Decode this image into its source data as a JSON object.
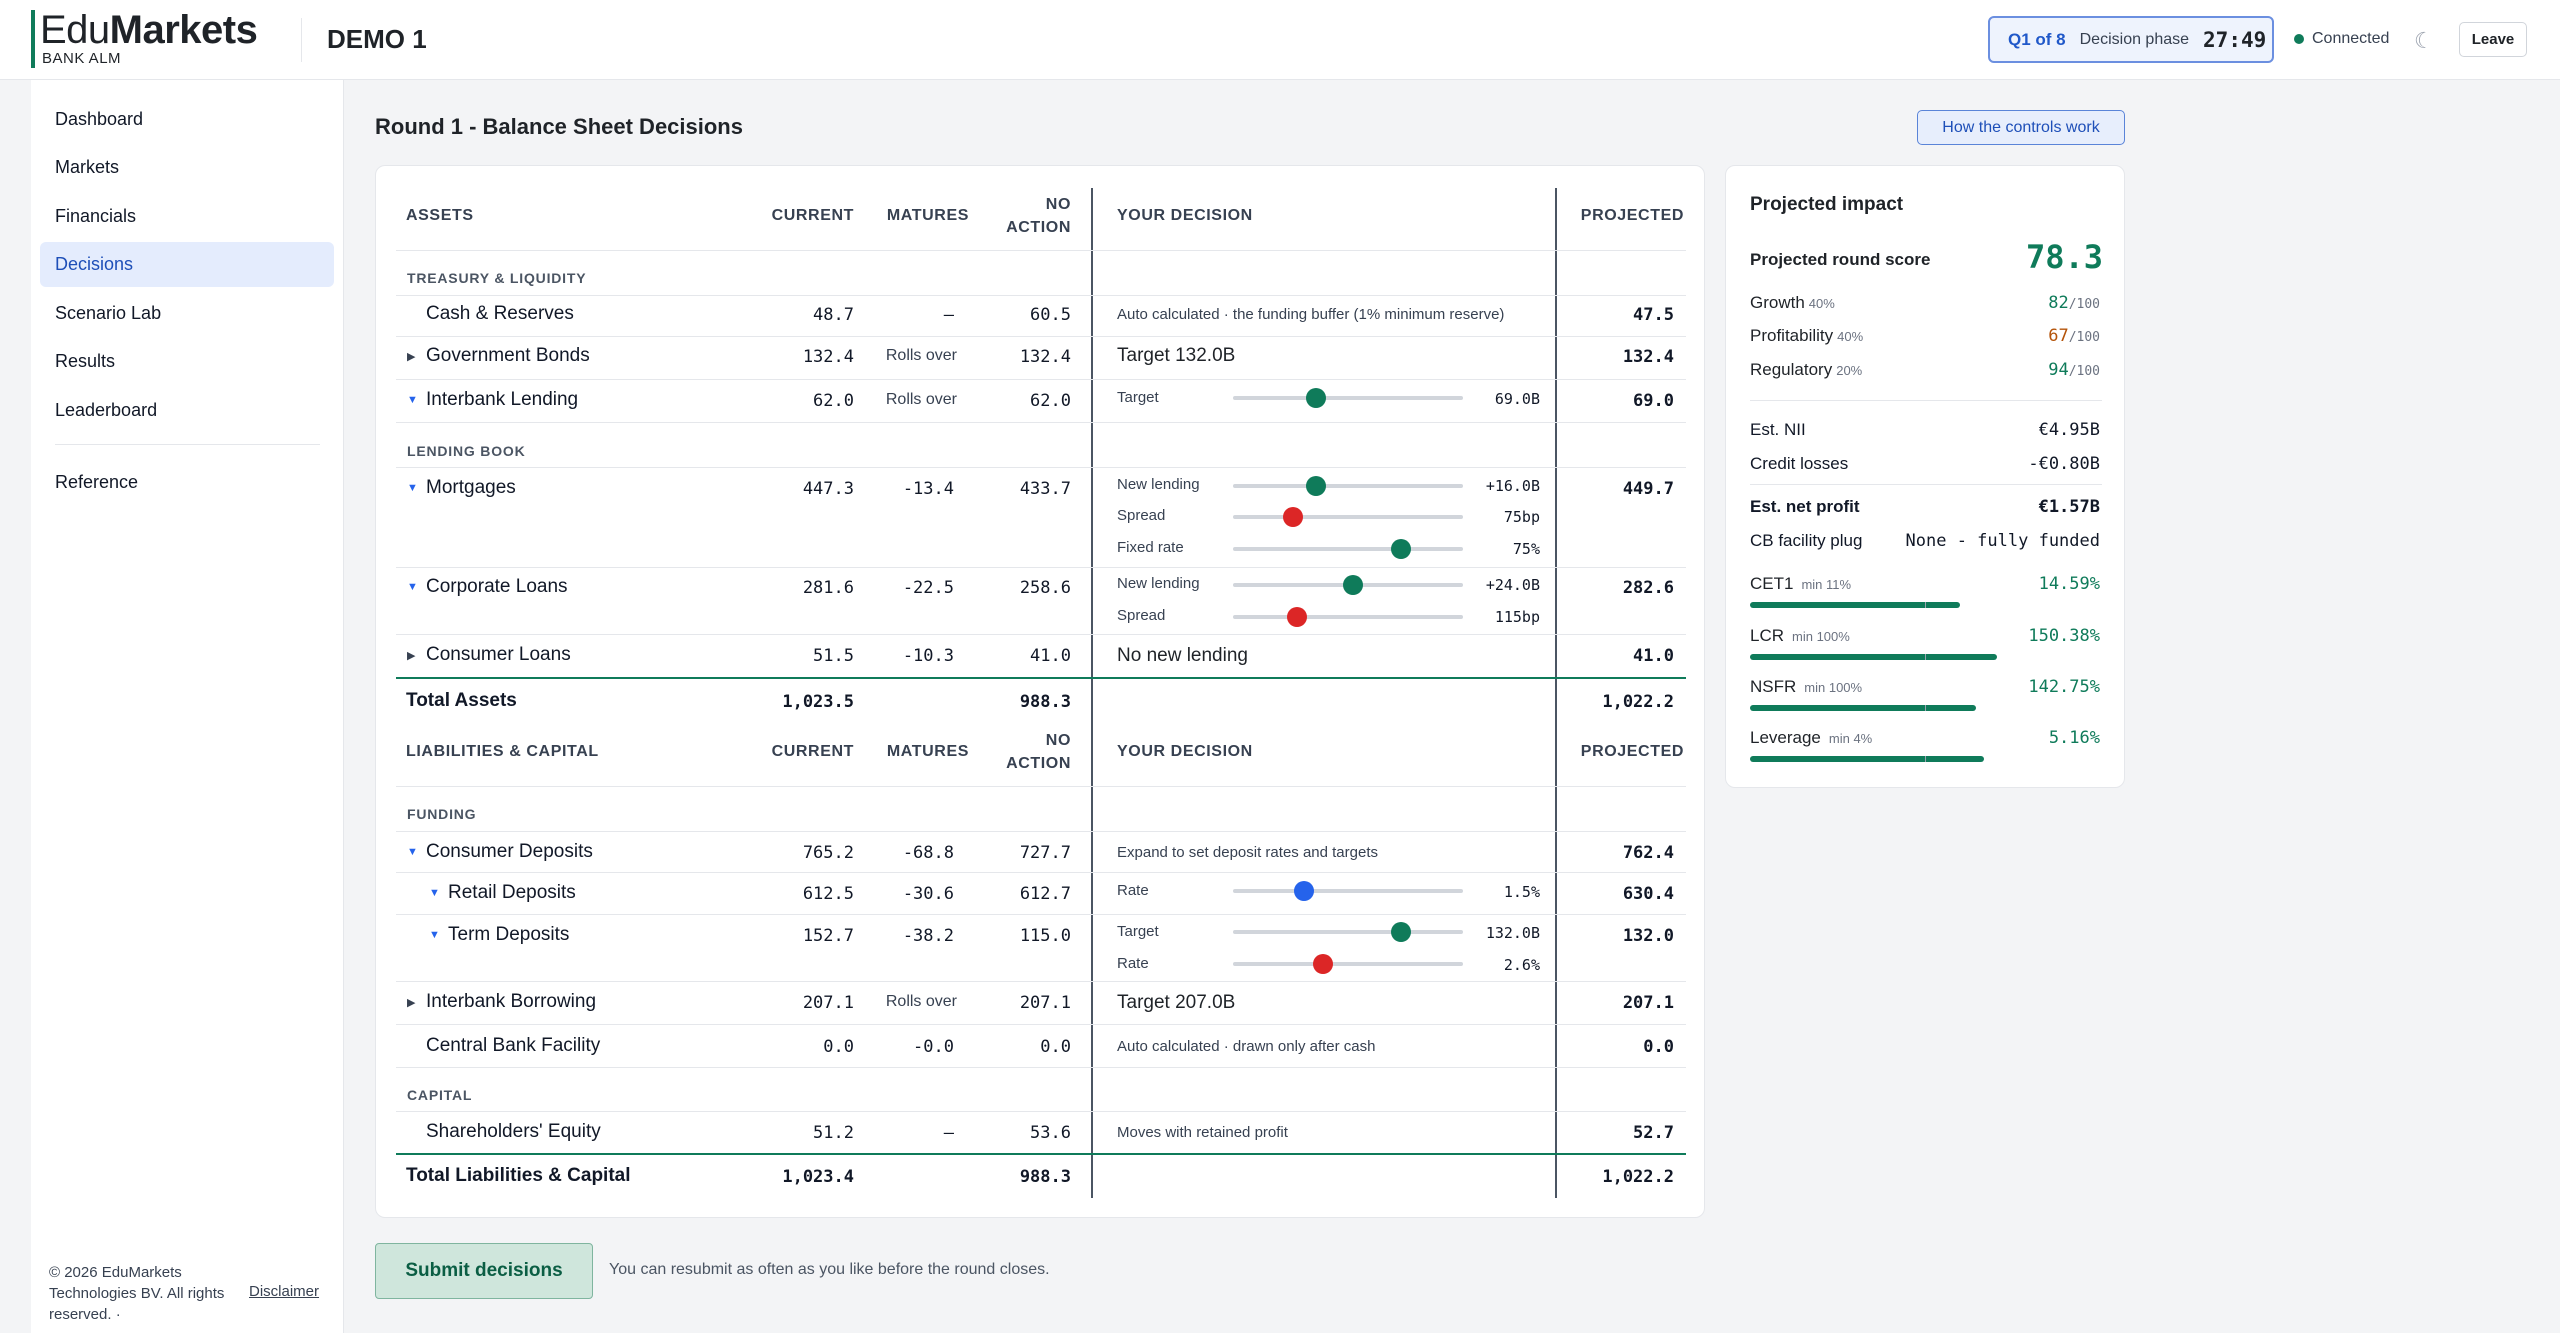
{
  "header": {
    "logo_light": "Edu",
    "logo_bold": "Markets",
    "logo_sub": "BANK ALM",
    "app_title": "DEMO 1",
    "phase_q": "Q1 of 8",
    "phase_label": "Decision phase",
    "timer": "27:49",
    "connection": "Connected",
    "leave_label": "Leave"
  },
  "sidebar": {
    "items": [
      "Dashboard",
      "Markets",
      "Financials",
      "Decisions",
      "Scenario Lab",
      "Results",
      "Leaderboard"
    ],
    "active": "Decisions",
    "reference": "Reference",
    "footer_copy": "© 2026 EduMarkets Technologies BV. All rights reserved. ·",
    "disclaimer": "Disclaimer"
  },
  "main": {
    "title": "Round 1 - Balance Sheet Decisions",
    "how_button": "How the controls work",
    "submit_label": "Submit decisions",
    "submit_note": "You can resubmit as often as you like before the round closes."
  },
  "table": {
    "assets_header": {
      "name": "ASSETS",
      "current": "CURRENT",
      "matures": "MATURES",
      "no_action_1": "NO",
      "no_action_2": "ACTION",
      "decision": "YOUR DECISION",
      "projected": "PROJECTED"
    },
    "liab_header": {
      "name": "LIABILITIES & CAPITAL",
      "current": "CURRENT",
      "matures": "MATURES",
      "no_action_1": "NO",
      "no_action_2": "ACTION",
      "decision": "YOUR DECISION",
      "projected": "PROJECTED"
    },
    "sections": {
      "treasury": "TREASURY & LIQUIDITY",
      "lending": "LENDING BOOK",
      "funding": "FUNDING",
      "capital": "CAPITAL"
    },
    "rows": {
      "cash": {
        "name": "Cash & Reserves",
        "current": "48.7",
        "matures": "—",
        "no_action": "60.5",
        "decision": "Auto calculated · the funding buffer (1% minimum reserve)",
        "projected": "47.5"
      },
      "govbonds": {
        "name": "Government Bonds",
        "current": "132.4",
        "matures": "Rolls over",
        "no_action": "132.4",
        "decision": "Target 132.0B",
        "projected": "132.4"
      },
      "interbank_lending": {
        "name": "Interbank Lending",
        "current": "62.0",
        "matures": "Rolls over",
        "no_action": "62.0",
        "slider_label": "Target",
        "slider_value": "69.0B",
        "slider_pos": 0.36,
        "projected": "69.0"
      },
      "mortgages": {
        "name": "Mortgages",
        "current": "447.3",
        "matures": "-13.4",
        "no_action": "433.7",
        "projected": "449.7",
        "sliders": [
          {
            "label": "New lending",
            "value": "+16.0B",
            "pos": 0.36,
            "color": "#0f7b5a"
          },
          {
            "label": "Spread",
            "value": "75bp",
            "pos": 0.26,
            "color": "#dc2626"
          },
          {
            "label": "Fixed rate",
            "value": "75%",
            "pos": 0.73,
            "color": "#0f7b5a"
          }
        ]
      },
      "corporate": {
        "name": "Corporate Loans",
        "current": "281.6",
        "matures": "-22.5",
        "no_action": "258.6",
        "projected": "282.6",
        "sliders": [
          {
            "label": "New lending",
            "value": "+24.0B",
            "pos": 0.52,
            "color": "#0f7b5a"
          },
          {
            "label": "Spread",
            "value": "115bp",
            "pos": 0.28,
            "color": "#dc2626"
          }
        ]
      },
      "consumer_loans": {
        "name": "Consumer Loans",
        "current": "51.5",
        "matures": "-10.3",
        "no_action": "41.0",
        "decision": "No new lending",
        "projected": "41.0"
      },
      "total_assets": {
        "name": "Total Assets",
        "current": "1,023.5",
        "no_action": "988.3",
        "projected": "1,022.2"
      },
      "consumer_deposits": {
        "name": "Consumer Deposits",
        "current": "765.2",
        "matures": "-68.8",
        "no_action": "727.7",
        "decision": "Expand to set deposit rates and targets",
        "projected": "762.4"
      },
      "retail": {
        "name": "Retail Deposits",
        "current": "612.5",
        "matures": "-30.6",
        "no_action": "612.7",
        "slider_label": "Rate",
        "slider_value": "1.5%",
        "slider_pos": 0.31,
        "projected": "630.4"
      },
      "term": {
        "name": "Term Deposits",
        "current": "152.7",
        "matures": "-38.2",
        "no_action": "115.0",
        "projected": "132.0",
        "sliders": [
          {
            "label": "Target",
            "value": "132.0B",
            "pos": 0.73,
            "color": "#0f7b5a"
          },
          {
            "label": "Rate",
            "value": "2.6%",
            "pos": 0.39,
            "color": "#dc2626"
          }
        ]
      },
      "interbank_borrowing": {
        "name": "Interbank Borrowing",
        "current": "207.1",
        "matures": "Rolls over",
        "no_action": "207.1",
        "decision": "Target 207.0B",
        "projected": "207.1"
      },
      "cbf": {
        "name": "Central Bank Facility",
        "current": "0.0",
        "matures": "-0.0",
        "no_action": "0.0",
        "decision": "Auto calculated · drawn only after cash",
        "projected": "0.0"
      },
      "equity": {
        "name": "Shareholders' Equity",
        "current": "51.2",
        "matures": "—",
        "no_action": "53.6",
        "decision": "Moves with retained profit",
        "projected": "52.7"
      },
      "total_liab": {
        "name": "Total Liabilities & Capital",
        "current": "1,023.4",
        "no_action": "988.3",
        "projected": "1,022.2"
      }
    }
  },
  "impact": {
    "title": "Projected impact",
    "score_label": "Projected round score",
    "score": "78.3",
    "subscores": [
      {
        "label": "Growth",
        "weight": "40%",
        "value": "82",
        "of": "/100",
        "color": "#0f7b5a"
      },
      {
        "label": "Profitability",
        "weight": "40%",
        "value": "67",
        "of": "/100",
        "color": "#b45309"
      },
      {
        "label": "Regulatory",
        "weight": "20%",
        "value": "94",
        "of": "/100",
        "color": "#0f7b5a"
      }
    ],
    "kv": [
      {
        "label": "Est. NII",
        "value": "€4.95B"
      },
      {
        "label": "Credit losses",
        "value": "-€0.80B"
      },
      {
        "label": "Est. net profit",
        "value": "€1.57B"
      },
      {
        "label": "CB facility plug",
        "value": "None - fully funded"
      }
    ],
    "ratios": [
      {
        "label": "CET1",
        "min": "min 11%",
        "value": "14.59%",
        "fill": 0.8
      },
      {
        "label": "LCR",
        "min": "min 100%",
        "value": "150.38%",
        "fill": 0.94
      },
      {
        "label": "NSFR",
        "min": "min 100%",
        "value": "142.75%",
        "fill": 0.86
      },
      {
        "label": "Leverage",
        "min": "min 4%",
        "value": "5.16%",
        "fill": 0.89
      }
    ]
  }
}
